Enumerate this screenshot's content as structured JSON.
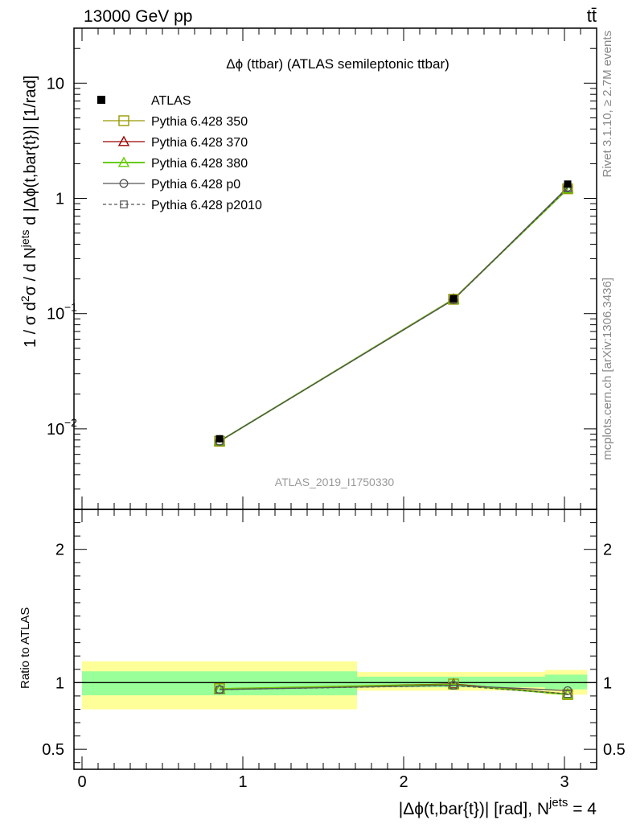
{
  "header": {
    "energy_label": "13000 GeV pp",
    "process_label": "tt̄"
  },
  "side_labels": {
    "rivet": "Rivet 3.1.10, ≥ 2.7M events",
    "mcplots": "mcplots.cern.ch [arXiv:1306.3436]"
  },
  "chart_data": [
    {
      "type": "line",
      "panel": "main",
      "title": "Δϕ (ttbar) (ATLAS semileptonic ttbar)",
      "ylabel_parts": [
        "1 / σ d",
        "2",
        "σ / d N",
        "jets",
        " d |Δϕ(t,bar{t})| [1/rad]"
      ],
      "yscale": "log",
      "ylim": [
        0.002,
        30
      ],
      "xlim": [
        -0.05,
        3.2
      ],
      "y_ticks": [
        {
          "value": 10,
          "label": "10",
          "exp": ""
        },
        {
          "value": 1,
          "label": "1",
          "exp": ""
        },
        {
          "value": 0.1,
          "label": "10",
          "exp": "−1"
        },
        {
          "value": 0.01,
          "label": "10",
          "exp": "−2"
        }
      ],
      "watermark": "ATLAS_2019_I1750330",
      "legend_position": "top-left",
      "x": [
        0.855,
        2.31,
        3.02
      ],
      "data": {
        "name": "ATLAS",
        "values": [
          0.0082,
          0.135,
          1.33
        ],
        "errors": [
          0.0006,
          0.006,
          0.06
        ]
      },
      "series": [
        {
          "name": "Pythia 6.428 350",
          "color": "#999900",
          "marker": "square-open",
          "dash": "",
          "values": [
            0.0078,
            0.133,
            1.21
          ]
        },
        {
          "name": "Pythia 6.428 370",
          "color": "#990000",
          "marker": "triangle-open",
          "dash": "",
          "values": [
            0.0078,
            0.134,
            1.22
          ]
        },
        {
          "name": "Pythia 6.428 380",
          "color": "#66cc00",
          "marker": "triangle-open",
          "dash": "",
          "values": [
            0.0078,
            0.133,
            1.21
          ]
        },
        {
          "name": "Pythia 6.428 p0",
          "color": "#555555",
          "marker": "circle-open",
          "dash": "",
          "values": [
            0.0078,
            0.132,
            1.25
          ]
        },
        {
          "name": "Pythia 6.428 p2010",
          "color": "#555555",
          "marker": "square-small-open",
          "dash": "4,3",
          "values": [
            0.0078,
            0.132,
            1.22
          ]
        }
      ]
    },
    {
      "type": "line",
      "panel": "ratio",
      "ylabel": "Ratio to ATLAS",
      "yscale": "linear",
      "ylim": [
        0.35,
        2.3
      ],
      "xlim": [
        -0.05,
        3.2
      ],
      "xlabel_parts": [
        "|Δϕ(t,bar{t})| [rad], N",
        "jets",
        " = 4"
      ],
      "y_ticks": [
        {
          "value": 2,
          "label": "2"
        },
        {
          "value": 1,
          "label": "1"
        },
        {
          "value": 0.5,
          "label": "0.5"
        }
      ],
      "x_ticks": [
        {
          "value": 0,
          "label": "0"
        },
        {
          "value": 1,
          "label": "1"
        },
        {
          "value": 2,
          "label": "2"
        },
        {
          "value": 3,
          "label": "3"
        }
      ],
      "bins": [
        [
          0,
          1.71
        ],
        [
          1.71,
          2.88
        ],
        [
          2.88,
          3.1416
        ]
      ],
      "band_stat": [
        [
          0.905,
          1.085
        ],
        [
          0.965,
          1.045
        ],
        [
          0.95,
          1.06
        ]
      ],
      "band_total": [
        [
          0.8,
          1.16
        ],
        [
          0.94,
          1.08
        ],
        [
          0.91,
          1.095
        ]
      ],
      "x": [
        0.855,
        2.31,
        3.02
      ],
      "series": [
        {
          "name": "Pythia 6.428 350",
          "values": [
            0.955,
            0.99,
            0.91
          ]
        },
        {
          "name": "Pythia 6.428 370",
          "values": [
            0.95,
            0.99,
            0.915
          ]
        },
        {
          "name": "Pythia 6.428 380",
          "values": [
            0.952,
            0.985,
            0.912
          ]
        },
        {
          "name": "Pythia 6.428 p0",
          "values": [
            0.948,
            0.98,
            0.94
          ]
        },
        {
          "name": "Pythia 6.428 p2010",
          "values": [
            0.948,
            0.978,
            0.915
          ]
        }
      ]
    }
  ],
  "colors": {
    "band_stat": "#99ff99",
    "band_total": "#ffff99",
    "data_marker": "#000000"
  }
}
